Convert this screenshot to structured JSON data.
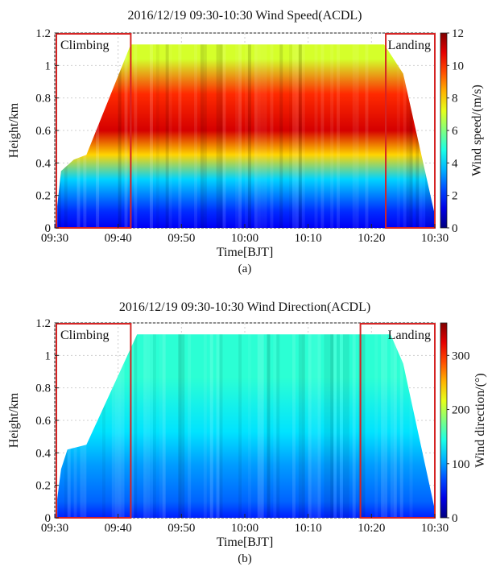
{
  "chart_data": [
    {
      "type": "heatmap",
      "title": "2016/12/19 09:30-10:30 Wind Speed(ACDL)",
      "caption": "(a)",
      "xlabel": "Time[BJT]",
      "ylabel": "Height/km",
      "x_ticks": [
        "09:30",
        "09:40",
        "09:50",
        "10:00",
        "10:10",
        "10:20",
        "10:30"
      ],
      "y_ticks": [
        "0",
        "0.2",
        "0.4",
        "0.6",
        "0.8",
        "1",
        "1.2"
      ],
      "ylim": [
        0,
        1.2
      ],
      "colorbar": {
        "label": "Wind speed/(m/s)",
        "range": [
          0,
          12
        ],
        "ticks": [
          "0",
          "2",
          "4",
          "6",
          "8",
          "10",
          "12"
        ],
        "colormap": "jet"
      },
      "annotations": [
        {
          "text": "Climbing",
          "time_range": [
            "09:30",
            "09:42"
          ],
          "height_range": [
            0,
            1.2
          ]
        },
        {
          "text": "Landing",
          "time_range": [
            "10:22",
            "10:30"
          ],
          "height_range": [
            0,
            1.2
          ]
        }
      ],
      "profile_envelope": {
        "time": [
          "09:30",
          "09:31",
          "09:33",
          "09:35",
          "09:42",
          "10:22",
          "10:25",
          "10:30"
        ],
        "top_km": [
          0.0,
          0.35,
          0.42,
          0.45,
          1.13,
          1.13,
          0.95,
          0.08
        ]
      },
      "layers": [
        {
          "height_km": [
            0.0,
            0.2
          ],
          "wind_speed": 2
        },
        {
          "height_km": [
            0.2,
            0.4
          ],
          "wind_speed": 4
        },
        {
          "height_km": [
            0.4,
            0.5
          ],
          "wind_speed": 8
        },
        {
          "height_km": [
            0.5,
            0.7
          ],
          "wind_speed": 11
        },
        {
          "height_km": [
            0.7,
            0.95
          ],
          "wind_speed": 10
        },
        {
          "height_km": [
            0.95,
            1.13
          ],
          "wind_speed": 7
        }
      ]
    },
    {
      "type": "heatmap",
      "title": "2016/12/19 09:30-10:30 Wind Direction(ACDL)",
      "caption": "(b)",
      "xlabel": "Time[BJT]",
      "ylabel": "Height/km",
      "x_ticks": [
        "09:30",
        "09:40",
        "09:50",
        "10:00",
        "10:10",
        "10:20",
        "10:30"
      ],
      "y_ticks": [
        "0",
        "0.2",
        "0.4",
        "0.6",
        "0.8",
        "1",
        "1.2"
      ],
      "ylim": [
        0,
        1.2
      ],
      "colorbar": {
        "label": "Wind direction/(°)",
        "range": [
          0,
          360
        ],
        "ticks": [
          "0",
          "100",
          "200",
          "300"
        ],
        "colormap": "jet"
      },
      "annotations": [
        {
          "text": "Climbing",
          "time_range": [
            "09:30",
            "09:42"
          ],
          "height_range": [
            0,
            1.2
          ]
        },
        {
          "text": "Landing",
          "time_range": [
            "10:18",
            "10:30"
          ],
          "height_range": [
            0,
            1.2
          ]
        }
      ],
      "profile_envelope": {
        "time": [
          "09:30",
          "09:31",
          "09:32",
          "09:35",
          "09:43",
          "10:23",
          "10:25",
          "10:30"
        ],
        "top_km": [
          0.0,
          0.3,
          0.42,
          0.45,
          1.13,
          1.13,
          0.95,
          0.05
        ]
      },
      "layers": [
        {
          "height_km": [
            0.0,
            0.2
          ],
          "wind_direction": 80
        },
        {
          "height_km": [
            0.2,
            0.45
          ],
          "wind_direction": 100
        },
        {
          "height_km": [
            0.45,
            0.6
          ],
          "wind_direction": 125
        },
        {
          "height_km": [
            0.6,
            1.13
          ],
          "wind_direction": 150
        }
      ]
    }
  ]
}
